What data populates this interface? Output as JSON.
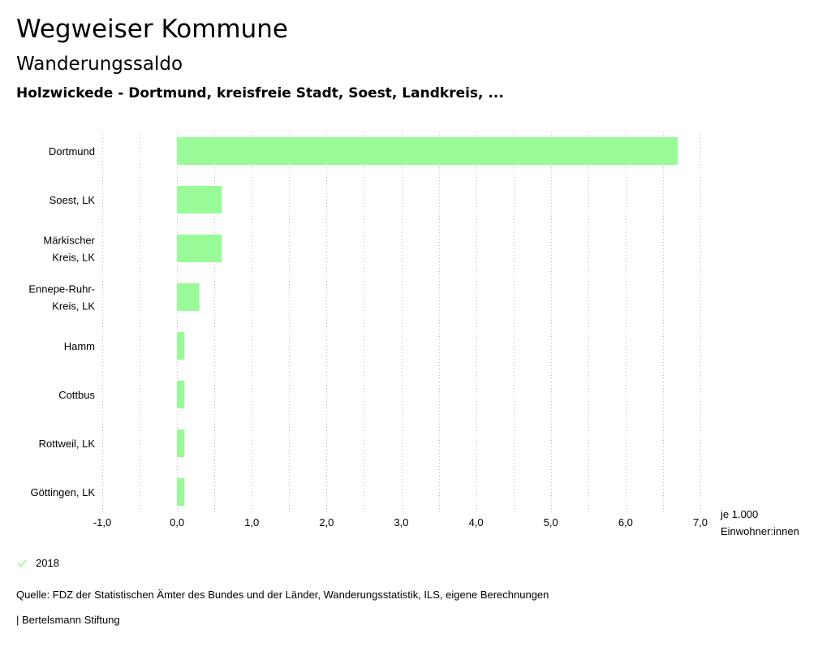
{
  "header": {
    "title": "Wegweiser Kommune",
    "subtitle": "Wanderungssaldo",
    "region": "Holzwickede - Dortmund, kreisfreie Stadt, Soest, Landkreis, ..."
  },
  "colors": {
    "bar": "#98fb98",
    "grid": "#bbbbbb",
    "text": "#000000"
  },
  "chart_data": {
    "type": "bar",
    "orientation": "horizontal",
    "categories": [
      [
        "Dortmund"
      ],
      [
        "Soest, LK"
      ],
      [
        "Märkischer",
        "Kreis, LK"
      ],
      [
        "Ennepe-Ruhr-",
        "Kreis, LK"
      ],
      [
        "Hamm"
      ],
      [
        "Cottbus"
      ],
      [
        "Rottweil, LK"
      ],
      [
        "Göttingen, LK"
      ]
    ],
    "series": [
      {
        "name": "2018",
        "values": [
          6.7,
          0.6,
          0.6,
          0.3,
          0.1,
          0.1,
          0.1,
          0.1
        ]
      }
    ],
    "xlim": [
      -1.0,
      7.0
    ],
    "xticks": [
      "-1,0",
      "0,0",
      "1,0",
      "2,0",
      "3,0",
      "4,0",
      "5,0",
      "6,0",
      "7,0"
    ],
    "xunit": [
      "je 1.000",
      "Einwohner:innen"
    ],
    "grid": true
  },
  "legend": {
    "label": "2018"
  },
  "footer": {
    "source": "Quelle: FDZ der Statistischen Ämter des Bundes und der Länder, Wanderungsstatistik, ILS, eigene Berechnungen",
    "credit": "| Bertelsmann Stiftung"
  }
}
